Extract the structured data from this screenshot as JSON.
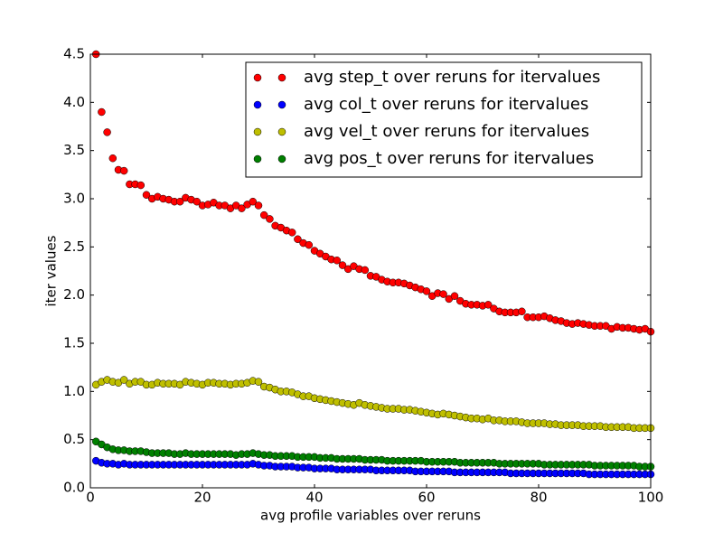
{
  "chart_data": {
    "type": "scatter",
    "xlabel": "avg profile variables over reruns",
    "ylabel": "iter values",
    "xlim": [
      0,
      100
    ],
    "ylim": [
      0,
      4.5
    ],
    "xticks": [
      0,
      20,
      40,
      60,
      80,
      100
    ],
    "yticks": [
      {
        "value": 0,
        "label": "0.0"
      },
      {
        "value": 0.5,
        "label": "0.5"
      },
      {
        "value": 1,
        "label": "1.0"
      },
      {
        "value": 1.5,
        "label": "1.5"
      },
      {
        "value": 2,
        "label": "2.0"
      },
      {
        "value": 2.5,
        "label": "2.5"
      },
      {
        "value": 3,
        "label": "3.0"
      },
      {
        "value": 3.5,
        "label": "3.5"
      },
      {
        "value": 4,
        "label": "4.0"
      },
      {
        "value": 4.5,
        "label": "4.5"
      }
    ],
    "grid": false,
    "legend": "upper right",
    "x": [
      1,
      2,
      3,
      4,
      5,
      6,
      7,
      8,
      9,
      10,
      11,
      12,
      13,
      14,
      15,
      16,
      17,
      18,
      19,
      20,
      21,
      22,
      23,
      24,
      25,
      26,
      27,
      28,
      29,
      30,
      31,
      32,
      33,
      34,
      35,
      36,
      37,
      38,
      39,
      40,
      41,
      42,
      43,
      44,
      45,
      46,
      47,
      48,
      49,
      50,
      51,
      52,
      53,
      54,
      55,
      56,
      57,
      58,
      59,
      60,
      61,
      62,
      63,
      64,
      65,
      66,
      67,
      68,
      69,
      70,
      71,
      72,
      73,
      74,
      75,
      76,
      77,
      78,
      79,
      80,
      81,
      82,
      83,
      84,
      85,
      86,
      87,
      88,
      89,
      90,
      91,
      92,
      93,
      94,
      95,
      96,
      97,
      98,
      99,
      100
    ],
    "series": [
      {
        "name": "avg step_t over reruns for itervalues",
        "color": "#ff0000",
        "values": [
          4.5,
          3.9,
          3.69,
          3.42,
          3.3,
          3.29,
          3.15,
          3.15,
          3.14,
          3.04,
          3.0,
          3.02,
          3.0,
          2.99,
          2.97,
          2.97,
          3.01,
          2.99,
          2.97,
          2.93,
          2.94,
          2.96,
          2.93,
          2.93,
          2.9,
          2.93,
          2.9,
          2.94,
          2.97,
          2.93,
          2.83,
          2.79,
          2.72,
          2.7,
          2.67,
          2.65,
          2.58,
          2.54,
          2.52,
          2.46,
          2.43,
          2.4,
          2.37,
          2.36,
          2.31,
          2.27,
          2.3,
          2.27,
          2.26,
          2.2,
          2.19,
          2.16,
          2.14,
          2.13,
          2.13,
          2.12,
          2.1,
          2.08,
          2.06,
          2.04,
          1.99,
          2.02,
          2.01,
          1.96,
          1.99,
          1.94,
          1.91,
          1.9,
          1.9,
          1.89,
          1.9,
          1.86,
          1.83,
          1.82,
          1.82,
          1.82,
          1.83,
          1.77,
          1.77,
          1.77,
          1.78,
          1.76,
          1.74,
          1.73,
          1.71,
          1.7,
          1.71,
          1.7,
          1.69,
          1.68,
          1.68,
          1.68,
          1.65,
          1.67,
          1.66,
          1.66,
          1.65,
          1.64,
          1.65,
          1.62
        ]
      },
      {
        "name": "avg col_t over reruns for itervalues",
        "color": "#0000ff",
        "values": [
          0.28,
          0.26,
          0.25,
          0.25,
          0.24,
          0.25,
          0.24,
          0.24,
          0.24,
          0.24,
          0.24,
          0.24,
          0.24,
          0.24,
          0.24,
          0.24,
          0.24,
          0.24,
          0.24,
          0.24,
          0.24,
          0.24,
          0.24,
          0.24,
          0.24,
          0.24,
          0.24,
          0.24,
          0.25,
          0.24,
          0.23,
          0.23,
          0.22,
          0.22,
          0.22,
          0.22,
          0.21,
          0.21,
          0.21,
          0.2,
          0.2,
          0.2,
          0.2,
          0.19,
          0.19,
          0.19,
          0.19,
          0.19,
          0.19,
          0.19,
          0.18,
          0.18,
          0.18,
          0.18,
          0.18,
          0.18,
          0.18,
          0.17,
          0.17,
          0.17,
          0.17,
          0.17,
          0.17,
          0.17,
          0.16,
          0.16,
          0.16,
          0.16,
          0.16,
          0.16,
          0.16,
          0.16,
          0.16,
          0.16,
          0.15,
          0.15,
          0.15,
          0.15,
          0.15,
          0.15,
          0.15,
          0.15,
          0.15,
          0.15,
          0.15,
          0.15,
          0.15,
          0.15,
          0.14,
          0.14,
          0.14,
          0.14,
          0.14,
          0.14,
          0.14,
          0.14,
          0.14,
          0.14,
          0.14,
          0.14
        ]
      },
      {
        "name": "avg vel_t over reruns for itervalues",
        "color": "#bfbf00",
        "values": [
          1.07,
          1.1,
          1.12,
          1.1,
          1.09,
          1.12,
          1.08,
          1.1,
          1.1,
          1.07,
          1.07,
          1.09,
          1.08,
          1.08,
          1.08,
          1.07,
          1.1,
          1.09,
          1.08,
          1.07,
          1.09,
          1.09,
          1.08,
          1.08,
          1.07,
          1.08,
          1.08,
          1.09,
          1.11,
          1.1,
          1.05,
          1.04,
          1.02,
          1.0,
          1.0,
          0.99,
          0.97,
          0.95,
          0.95,
          0.93,
          0.92,
          0.91,
          0.9,
          0.89,
          0.88,
          0.87,
          0.86,
          0.88,
          0.86,
          0.85,
          0.84,
          0.83,
          0.82,
          0.82,
          0.82,
          0.81,
          0.81,
          0.8,
          0.79,
          0.78,
          0.77,
          0.76,
          0.77,
          0.76,
          0.75,
          0.74,
          0.73,
          0.72,
          0.72,
          0.71,
          0.72,
          0.7,
          0.7,
          0.69,
          0.69,
          0.69,
          0.68,
          0.67,
          0.67,
          0.67,
          0.67,
          0.66,
          0.66,
          0.65,
          0.65,
          0.65,
          0.65,
          0.64,
          0.64,
          0.64,
          0.64,
          0.63,
          0.63,
          0.63,
          0.63,
          0.63,
          0.62,
          0.62,
          0.62,
          0.62
        ]
      },
      {
        "name": "avg pos_t over reruns for itervalues",
        "color": "#008000",
        "values": [
          0.48,
          0.45,
          0.42,
          0.4,
          0.39,
          0.39,
          0.38,
          0.38,
          0.38,
          0.37,
          0.36,
          0.36,
          0.36,
          0.36,
          0.35,
          0.35,
          0.36,
          0.35,
          0.35,
          0.35,
          0.35,
          0.35,
          0.35,
          0.35,
          0.35,
          0.34,
          0.35,
          0.35,
          0.36,
          0.35,
          0.34,
          0.34,
          0.33,
          0.33,
          0.33,
          0.33,
          0.32,
          0.32,
          0.32,
          0.32,
          0.31,
          0.31,
          0.31,
          0.3,
          0.3,
          0.3,
          0.3,
          0.3,
          0.29,
          0.29,
          0.29,
          0.29,
          0.28,
          0.28,
          0.28,
          0.28,
          0.28,
          0.28,
          0.28,
          0.27,
          0.27,
          0.27,
          0.27,
          0.27,
          0.27,
          0.26,
          0.26,
          0.26,
          0.26,
          0.26,
          0.26,
          0.26,
          0.25,
          0.25,
          0.25,
          0.25,
          0.25,
          0.25,
          0.25,
          0.25,
          0.24,
          0.24,
          0.24,
          0.24,
          0.24,
          0.24,
          0.24,
          0.24,
          0.24,
          0.23,
          0.23,
          0.23,
          0.23,
          0.23,
          0.23,
          0.23,
          0.23,
          0.22,
          0.22,
          0.22
        ]
      }
    ]
  }
}
